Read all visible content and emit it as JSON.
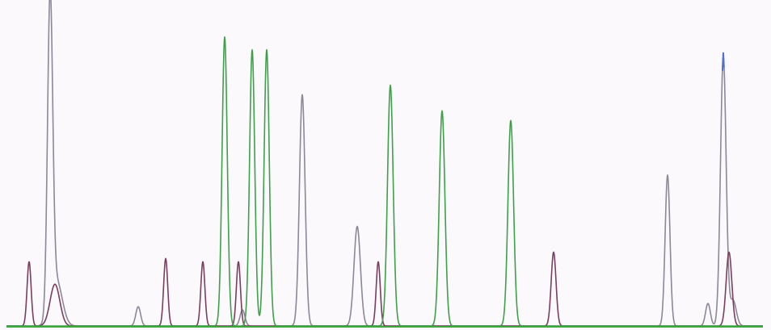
{
  "chart_data": {
    "type": "line",
    "title": "",
    "xlabel": "",
    "ylabel": "",
    "grid": false,
    "xlim": [
      0,
      954
    ],
    "ylim": [
      0,
      100
    ],
    "colors": {
      "background": "#fbf9fc",
      "baseline": "#3da63d",
      "grey": "#8d8797",
      "purple": "#7a3e5f",
      "green": "#3ea048",
      "blue": "#4d6fd6"
    },
    "series": [
      {
        "color": "grey",
        "peaks": [
          {
            "x": 62,
            "height": 98,
            "width": 3.2
          },
          {
            "x": 70,
            "height": 14,
            "width": 7
          },
          {
            "x": 171,
            "height": 6,
            "width": 3
          },
          {
            "x": 300,
            "height": 5,
            "width": 3
          },
          {
            "x": 374,
            "height": 72,
            "width": 3.5
          },
          {
            "x": 442,
            "height": 31,
            "width": 4
          },
          {
            "x": 826,
            "height": 47,
            "width": 3
          },
          {
            "x": 876,
            "height": 7,
            "width": 3
          },
          {
            "x": 895,
            "height": 84,
            "width": 3.5
          },
          {
            "x": 907,
            "height": 8,
            "width": 4
          }
        ]
      },
      {
        "color": "purple",
        "peaks": [
          {
            "x": 36,
            "height": 20,
            "width": 2.5
          },
          {
            "x": 68,
            "height": 13,
            "width": 6
          },
          {
            "x": 205,
            "height": 21,
            "width": 2.5
          },
          {
            "x": 251,
            "height": 20,
            "width": 2.5
          },
          {
            "x": 295,
            "height": 20,
            "width": 2.5
          },
          {
            "x": 468,
            "height": 20,
            "width": 2.5
          },
          {
            "x": 685,
            "height": 23,
            "width": 3
          },
          {
            "x": 902,
            "height": 23,
            "width": 3.5
          }
        ]
      },
      {
        "color": "green",
        "peaks": [
          {
            "x": 278,
            "height": 90,
            "width": 3.2
          },
          {
            "x": 312,
            "height": 86,
            "width": 3.2
          },
          {
            "x": 330,
            "height": 86,
            "width": 3.2
          },
          {
            "x": 483,
            "height": 75,
            "width": 3.5
          },
          {
            "x": 547,
            "height": 67,
            "width": 3.5
          },
          {
            "x": 632,
            "height": 64,
            "width": 3.5
          }
        ]
      },
      {
        "color": "blue",
        "peaks": [
          {
            "x": 895,
            "height": 85,
            "width": 1.4
          }
        ]
      }
    ]
  }
}
